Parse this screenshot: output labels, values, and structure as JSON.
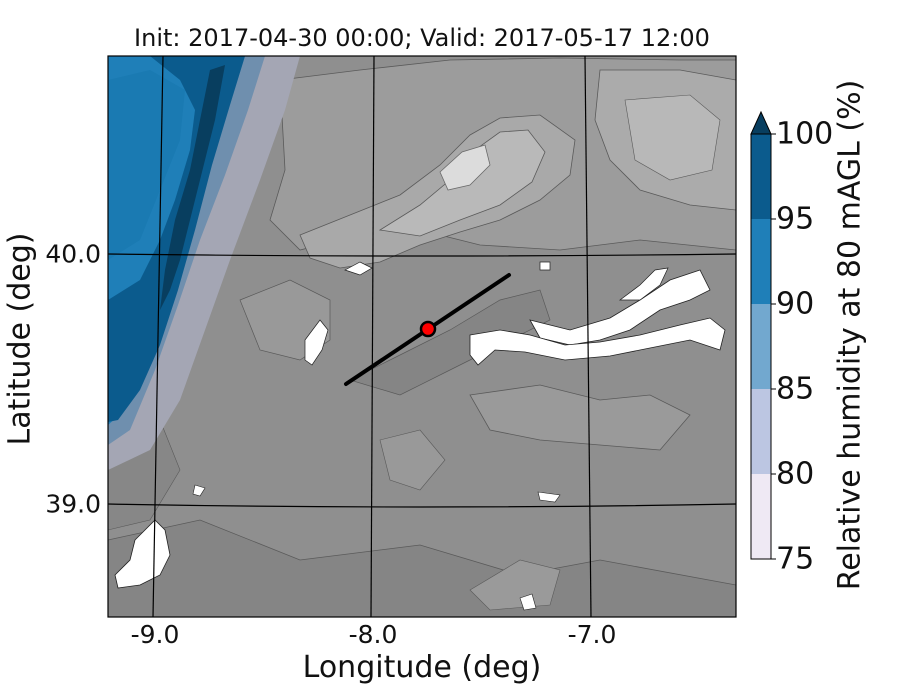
{
  "title": "Init: 2017-04-30 00:00; Valid: 2017-05-17 12:00",
  "xlabel": "Longitude (deg)",
  "ylabel": "Latitude (deg)",
  "x_ticks": [
    "-9.0",
    "-8.0",
    "-7.0"
  ],
  "y_ticks": [
    "40.0",
    "39.0"
  ],
  "colorbar": {
    "label": "Relative humidity at 80 mAGL (%)",
    "ticks": [
      "100",
      "95",
      "90",
      "85",
      "80",
      "75"
    ],
    "levels": [
      {
        "from": 75,
        "to": 80,
        "color": "#efe9f4"
      },
      {
        "from": 80,
        "to": 85,
        "color": "#bcc6e2"
      },
      {
        "from": 85,
        "to": 90,
        "color": "#72a8cf"
      },
      {
        "from": 90,
        "to": 95,
        "color": "#1f7fb8"
      },
      {
        "from": 95,
        "to": 100,
        "color": "#0b5b8d"
      }
    ],
    "extend_color": "#083e5f"
  },
  "chart_data": {
    "type": "heatmap",
    "title": "Init: 2017-04-30 00:00; Valid: 2017-05-17 12:00",
    "xlabel": "Longitude (deg)",
    "ylabel": "Latitude (deg)",
    "xlim": [
      -9.2,
      -6.35
    ],
    "ylim": [
      38.55,
      40.8
    ],
    "variable": "Relative humidity at 80 mAGL (%)",
    "color_range": [
      75,
      100
    ],
    "extend": "max",
    "cross_section_line": {
      "start": [
        -8.13,
        39.48
      ],
      "end": [
        -7.37,
        39.93
      ]
    },
    "marker": {
      "lon": -7.75,
      "lat": 39.69,
      "color": "#ff0000"
    }
  }
}
